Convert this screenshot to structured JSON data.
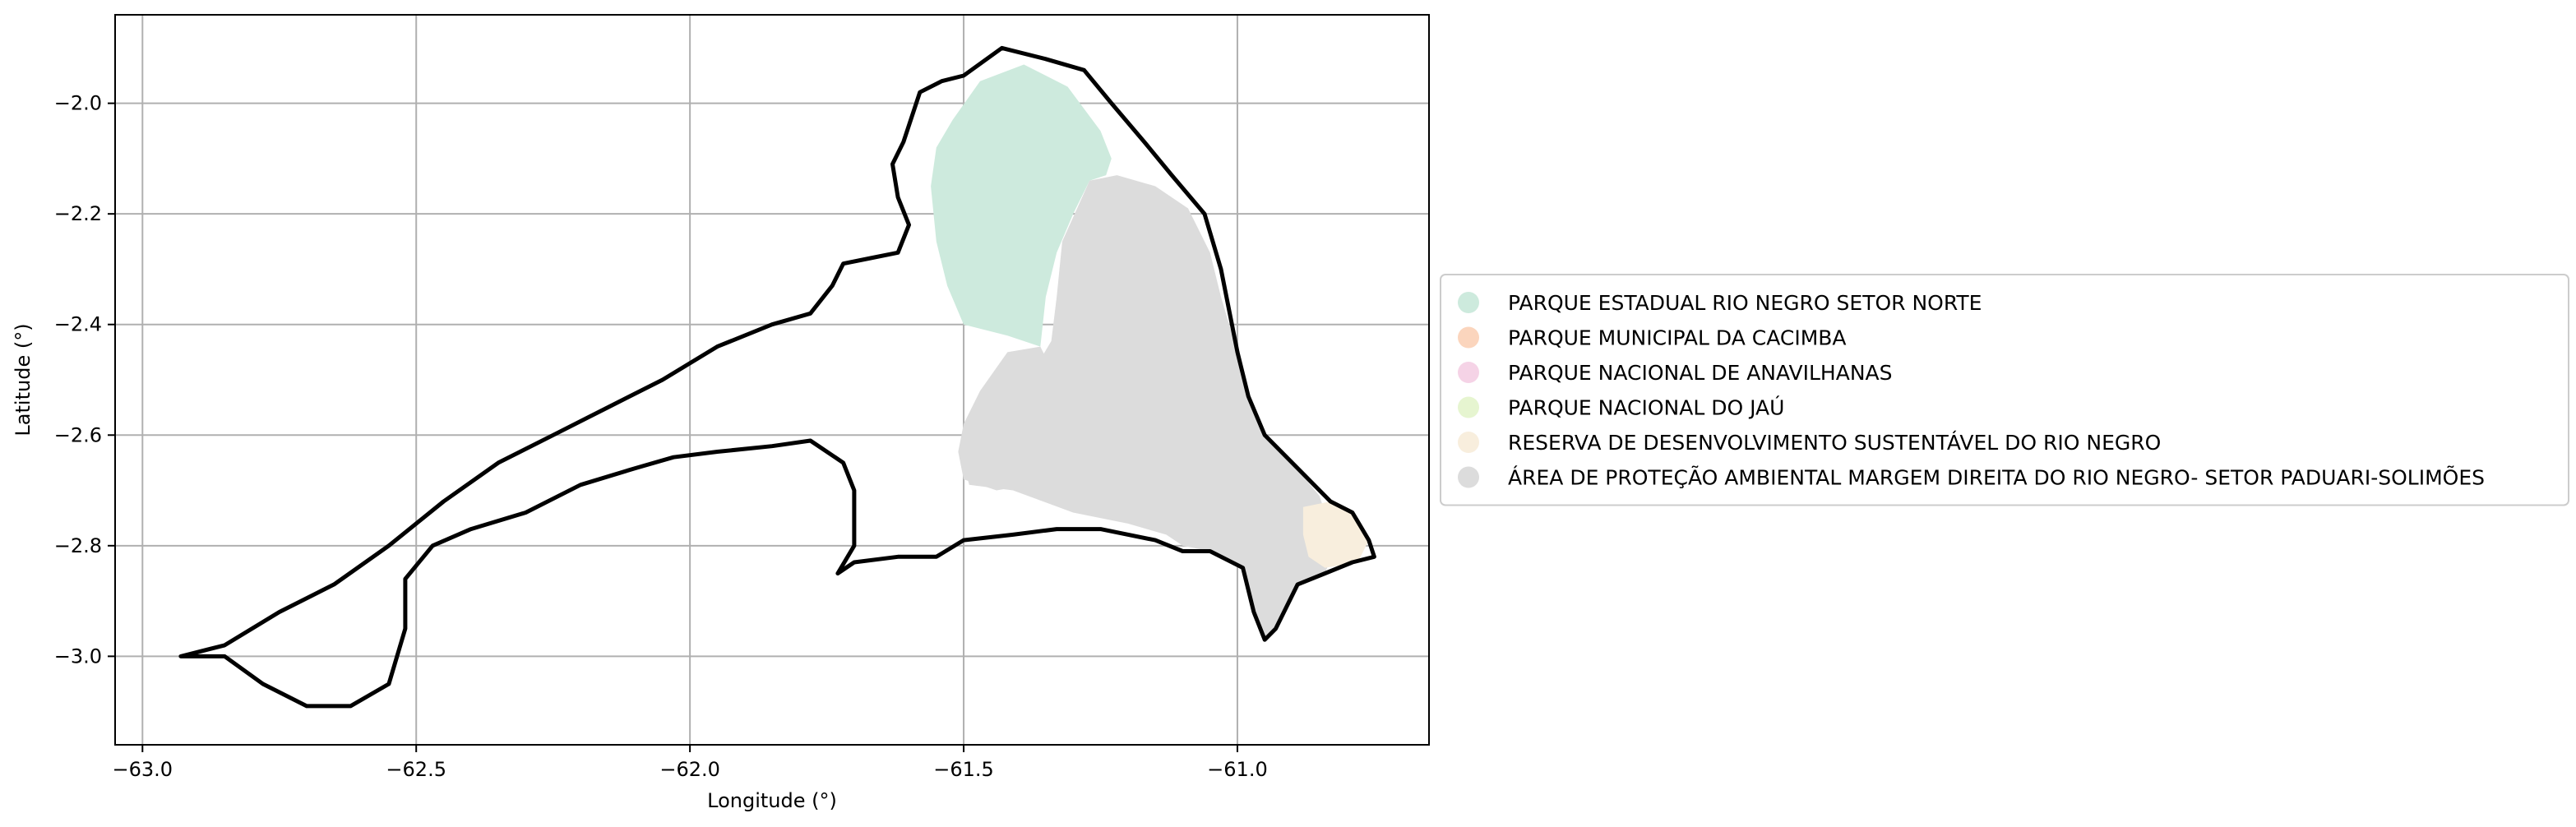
{
  "chart_data": {
    "type": "map",
    "xlabel": "Longitude (°)",
    "ylabel": "Latitude (°)",
    "xlim": [
      -63.05,
      -60.65
    ],
    "ylim": [
      -3.16,
      -1.84
    ],
    "xticks": [
      -63.0,
      -62.5,
      -62.0,
      -61.5,
      -61.0
    ],
    "xtick_labels": [
      "−63.0",
      "−62.5",
      "−62.0",
      "−61.5",
      "−61.0"
    ],
    "yticks": [
      -2.0,
      -2.2,
      -2.4,
      -2.6,
      -2.8,
      -3.0
    ],
    "ytick_labels": [
      "−2.0",
      "−2.2",
      "−2.4",
      "−2.6",
      "−2.8",
      "−3.0"
    ],
    "grid": true,
    "legend_position": "outside-right",
    "boundary_color": "#000000",
    "legend": [
      {
        "label": "PARQUE ESTADUAL RIO NEGRO SETOR NORTE",
        "color": "#cdeadd"
      },
      {
        "label": "PARQUE MUNICIPAL DA CACIMBA",
        "color": "#fbd5bd"
      },
      {
        "label": "PARQUE NACIONAL DE ANAVILHANAS",
        "color": "#f5d3e6"
      },
      {
        "label": "PARQUE NACIONAL DO JAÚ",
        "color": "#e6f5d0"
      },
      {
        "label": "RESERVA DE DESENVOLVIMENTO SUSTENTÁVEL DO RIO NEGRO",
        "color": "#f8eedd"
      },
      {
        "label": "ÁREA DE PROTEÇÃO AMBIENTAL MARGEM DIREITA DO RIO NEGRO- SETOR PADUARI-SOLIMÕES",
        "color": "#dcdcdc"
      }
    ],
    "regions": [
      {
        "name": "PARQUE ESTADUAL RIO NEGRO SETOR NORTE",
        "color": "#cdeadd",
        "points": [
          [
            -61.52,
            -2.03
          ],
          [
            -61.47,
            -1.96
          ],
          [
            -61.39,
            -1.93
          ],
          [
            -61.31,
            -1.97
          ],
          [
            -61.25,
            -2.05
          ],
          [
            -61.23,
            -2.1
          ],
          [
            -61.24,
            -2.13
          ],
          [
            -61.27,
            -2.14
          ],
          [
            -61.3,
            -2.2
          ],
          [
            -61.33,
            -2.27
          ],
          [
            -61.35,
            -2.35
          ],
          [
            -61.36,
            -2.44
          ],
          [
            -61.42,
            -2.42
          ],
          [
            -61.5,
            -2.4
          ],
          [
            -61.53,
            -2.33
          ],
          [
            -61.55,
            -2.25
          ],
          [
            -61.56,
            -2.15
          ],
          [
            -61.55,
            -2.08
          ]
        ]
      },
      {
        "name": "ÁREA DE PROTEÇÃO AMBIENTAL MARGEM DIREITA DO RIO NEGRO- SETOR PADUARI-SOLIMÕES",
        "color": "#dcdcdc",
        "points": [
          [
            -61.27,
            -2.14
          ],
          [
            -61.22,
            -2.13
          ],
          [
            -61.15,
            -2.15
          ],
          [
            -61.09,
            -2.19
          ],
          [
            -61.05,
            -2.27
          ],
          [
            -61.03,
            -2.35
          ],
          [
            -61.0,
            -2.45
          ],
          [
            -60.98,
            -2.53
          ],
          [
            -60.95,
            -2.6
          ],
          [
            -60.9,
            -2.65
          ],
          [
            -60.85,
            -2.71
          ],
          [
            -60.82,
            -2.8
          ],
          [
            -60.84,
            -2.85
          ],
          [
            -60.89,
            -2.87
          ],
          [
            -60.93,
            -2.95
          ],
          [
            -60.95,
            -2.97
          ],
          [
            -60.97,
            -2.92
          ],
          [
            -60.99,
            -2.84
          ],
          [
            -61.05,
            -2.81
          ],
          [
            -61.1,
            -2.8
          ],
          [
            -61.13,
            -2.78
          ],
          [
            -61.2,
            -2.76
          ],
          [
            -61.3,
            -2.74
          ],
          [
            -61.41,
            -2.7
          ],
          [
            -61.49,
            -2.69
          ],
          [
            -61.5,
            -2.65
          ],
          [
            -61.48,
            -2.59
          ],
          [
            -61.45,
            -2.54
          ],
          [
            -61.37,
            -2.48
          ],
          [
            -61.34,
            -2.43
          ],
          [
            -61.33,
            -2.35
          ],
          [
            -61.32,
            -2.25
          ]
        ]
      },
      {
        "name": "ÁREA DE PROTEÇÃO AMBIENTAL MARGEM DIREITA DO RIO NEGRO- SETOR PADUARI-SOLIMÕES",
        "color": "#dcdcdc",
        "points": [
          [
            -61.36,
            -2.44
          ],
          [
            -61.42,
            -2.45
          ],
          [
            -61.47,
            -2.52
          ],
          [
            -61.5,
            -2.58
          ],
          [
            -61.51,
            -2.63
          ],
          [
            -61.5,
            -2.68
          ],
          [
            -61.44,
            -2.7
          ],
          [
            -61.38,
            -2.69
          ],
          [
            -61.33,
            -2.62
          ],
          [
            -61.32,
            -2.52
          ]
        ]
      },
      {
        "name": "RESERVA DE DESENVOLVIMENTO SUSTENTÁVEL DO RIO NEGRO",
        "color": "#f8eedd",
        "points": [
          [
            -60.88,
            -2.73
          ],
          [
            -60.83,
            -2.72
          ],
          [
            -60.79,
            -2.74
          ],
          [
            -60.76,
            -2.79
          ],
          [
            -60.78,
            -2.83
          ],
          [
            -60.84,
            -2.84
          ],
          [
            -60.87,
            -2.82
          ],
          [
            -60.88,
            -2.78
          ]
        ]
      }
    ],
    "boundaries": [
      {
        "name": "outline-main",
        "closed": true,
        "points": [
          [
            -62.93,
            -3.0
          ],
          [
            -62.85,
            -2.98
          ],
          [
            -62.75,
            -2.92
          ],
          [
            -62.65,
            -2.87
          ],
          [
            -62.55,
            -2.8
          ],
          [
            -62.45,
            -2.72
          ],
          [
            -62.35,
            -2.65
          ],
          [
            -62.25,
            -2.6
          ],
          [
            -62.15,
            -2.55
          ],
          [
            -62.05,
            -2.5
          ],
          [
            -61.95,
            -2.44
          ],
          [
            -61.85,
            -2.4
          ],
          [
            -61.78,
            -2.38
          ],
          [
            -61.74,
            -2.33
          ],
          [
            -61.72,
            -2.29
          ],
          [
            -61.67,
            -2.28
          ],
          [
            -61.62,
            -2.27
          ],
          [
            -61.6,
            -2.22
          ],
          [
            -61.62,
            -2.17
          ],
          [
            -61.63,
            -2.11
          ],
          [
            -61.61,
            -2.07
          ],
          [
            -61.58,
            -1.98
          ],
          [
            -61.54,
            -1.96
          ],
          [
            -61.5,
            -1.95
          ],
          [
            -61.43,
            -1.9
          ],
          [
            -61.35,
            -1.92
          ],
          [
            -61.28,
            -1.94
          ],
          [
            -61.23,
            -2.0
          ],
          [
            -61.17,
            -2.07
          ],
          [
            -61.12,
            -2.13
          ],
          [
            -61.06,
            -2.2
          ],
          [
            -61.03,
            -2.3
          ],
          [
            -61.0,
            -2.45
          ],
          [
            -60.98,
            -2.53
          ],
          [
            -60.95,
            -2.6
          ],
          [
            -60.88,
            -2.67
          ],
          [
            -60.83,
            -2.72
          ],
          [
            -60.79,
            -2.74
          ],
          [
            -60.76,
            -2.79
          ],
          [
            -60.75,
            -2.82
          ],
          [
            -60.79,
            -2.83
          ],
          [
            -60.84,
            -2.85
          ],
          [
            -60.89,
            -2.87
          ],
          [
            -60.93,
            -2.95
          ],
          [
            -60.95,
            -2.97
          ],
          [
            -60.97,
            -2.92
          ],
          [
            -60.99,
            -2.84
          ],
          [
            -61.05,
            -2.81
          ],
          [
            -61.1,
            -2.81
          ],
          [
            -61.15,
            -2.79
          ],
          [
            -61.25,
            -2.77
          ],
          [
            -61.33,
            -2.77
          ],
          [
            -61.41,
            -2.78
          ],
          [
            -61.5,
            -2.79
          ],
          [
            -61.55,
            -2.82
          ],
          [
            -61.62,
            -2.82
          ],
          [
            -61.7,
            -2.83
          ],
          [
            -61.73,
            -2.85
          ],
          [
            -61.7,
            -2.8
          ],
          [
            -61.7,
            -2.7
          ],
          [
            -61.72,
            -2.65
          ],
          [
            -61.78,
            -2.61
          ],
          [
            -61.85,
            -2.62
          ],
          [
            -61.95,
            -2.63
          ],
          [
            -62.03,
            -2.64
          ],
          [
            -62.1,
            -2.66
          ],
          [
            -62.2,
            -2.69
          ],
          [
            -62.3,
            -2.74
          ],
          [
            -62.4,
            -2.77
          ],
          [
            -62.47,
            -2.8
          ],
          [
            -62.52,
            -2.86
          ],
          [
            -62.52,
            -2.95
          ],
          [
            -62.55,
            -3.05
          ],
          [
            -62.62,
            -3.09
          ],
          [
            -62.7,
            -3.09
          ],
          [
            -62.78,
            -3.05
          ],
          [
            -62.85,
            -3.0
          ]
        ]
      }
    ]
  }
}
